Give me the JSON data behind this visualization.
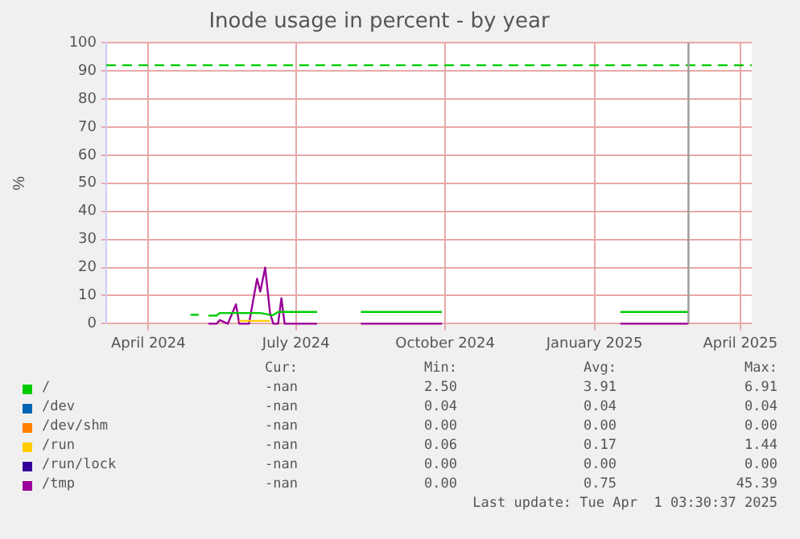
{
  "chart_data": {
    "type": "line",
    "title": "Inode usage in percent - by year",
    "ylabel": "%",
    "x": [
      "2024-04-27",
      "2024-05-02",
      "2024-05-04",
      "2024-05-08",
      "2024-05-13",
      "2024-05-15",
      "2024-05-20",
      "2024-05-25",
      "2024-05-27",
      "2024-06-02",
      "2024-06-07",
      "2024-06-09",
      "2024-06-12",
      "2024-06-15",
      "2024-06-17",
      "2024-06-20",
      "2024-06-22",
      "2024-06-24",
      "2024-07-14",
      "2024-07-30",
      "2024-08-10",
      "2024-09-29",
      "2024-11-20",
      "2025-01-17",
      "2025-02-28"
    ],
    "series": [
      {
        "name": "/",
        "color": "#00cc00",
        "values": [
          3.2,
          3.2,
          null,
          2.9,
          2.9,
          3.8,
          3.8,
          3.8,
          3.8,
          3.8,
          3.8,
          3.8,
          3.5,
          3.1,
          3.1,
          4.2,
          4.2,
          4.2,
          4.2,
          null,
          4.2,
          4.2,
          null,
          4.2,
          4.2
        ]
      },
      {
        "name": "/dev",
        "color": "#0066b3",
        "values": [
          null,
          null,
          null,
          null,
          null,
          null,
          null,
          null,
          null,
          null,
          null,
          null,
          null,
          null,
          null,
          null,
          null,
          null,
          null,
          null,
          null,
          null,
          null,
          null,
          null
        ]
      },
      {
        "name": "/dev/shm",
        "color": "#ff8000",
        "values": [
          null,
          null,
          null,
          null,
          null,
          null,
          null,
          null,
          null,
          null,
          null,
          null,
          null,
          null,
          null,
          null,
          null,
          null,
          null,
          null,
          null,
          null,
          null,
          null,
          null
        ]
      },
      {
        "name": "/run",
        "color": "#ffcc00",
        "values": [
          null,
          null,
          null,
          null,
          null,
          null,
          null,
          null,
          1.0,
          1.0,
          1.0,
          1.0,
          1.0,
          1.0,
          null,
          null,
          null,
          null,
          null,
          null,
          null,
          null,
          null,
          null,
          null
        ]
      },
      {
        "name": "/run/lock",
        "color": "#330099",
        "values": [
          null,
          null,
          null,
          null,
          null,
          null,
          null,
          null,
          null,
          null,
          null,
          null,
          null,
          null,
          null,
          null,
          null,
          null,
          null,
          null,
          null,
          null,
          null,
          null,
          null
        ]
      },
      {
        "name": "/tmp",
        "color": "#990099",
        "values": [
          null,
          null,
          null,
          0,
          0,
          1.3,
          0,
          6.9,
          0,
          0,
          16,
          11.4,
          20,
          3.8,
          0,
          0,
          9.1,
          0,
          0,
          null,
          0,
          0,
          null,
          0,
          0
        ]
      }
    ],
    "xlim": [
      "2024-03-06",
      "2025-04-08"
    ],
    "xticks": [
      {
        "value": "2024-04-01",
        "label": "April 2024"
      },
      {
        "value": "2024-07-01",
        "label": "July 2024"
      },
      {
        "value": "2024-10-01",
        "label": "October 2024"
      },
      {
        "value": "2025-01-01",
        "label": "January 2025"
      },
      {
        "value": "2025-04-01",
        "label": "April 2025"
      }
    ],
    "ylim": [
      0,
      100
    ],
    "yticks": [
      0,
      10,
      20,
      30,
      40,
      50,
      60,
      70,
      80,
      90,
      100
    ],
    "grid": true,
    "legend": "bottom",
    "marker": "none",
    "line_style": "solid",
    "ref_lines": [
      {
        "axis": "y",
        "value": 92,
        "color": "#00cc00",
        "line_style": "dashed"
      },
      {
        "axis": "x",
        "value": "2025-02-28",
        "color": "#999999",
        "line_style": "solid"
      }
    ],
    "annotations": [
      "Cur:",
      "Min:",
      "Avg:",
      "Max:",
      "-nan",
      "2.50",
      "3.91",
      "6.91",
      "-nan",
      "0.04",
      "0.04",
      "0.04",
      "-nan",
      "0.00",
      "0.00",
      "0.00",
      "-nan",
      "0.06",
      "0.17",
      "1.44",
      "-nan",
      "0.00",
      "0.00",
      "0.00",
      "-nan",
      "0.00",
      "0.75",
      "45.39",
      "Last update: Tue Apr  1 03:30:37 2025"
    ]
  }
}
